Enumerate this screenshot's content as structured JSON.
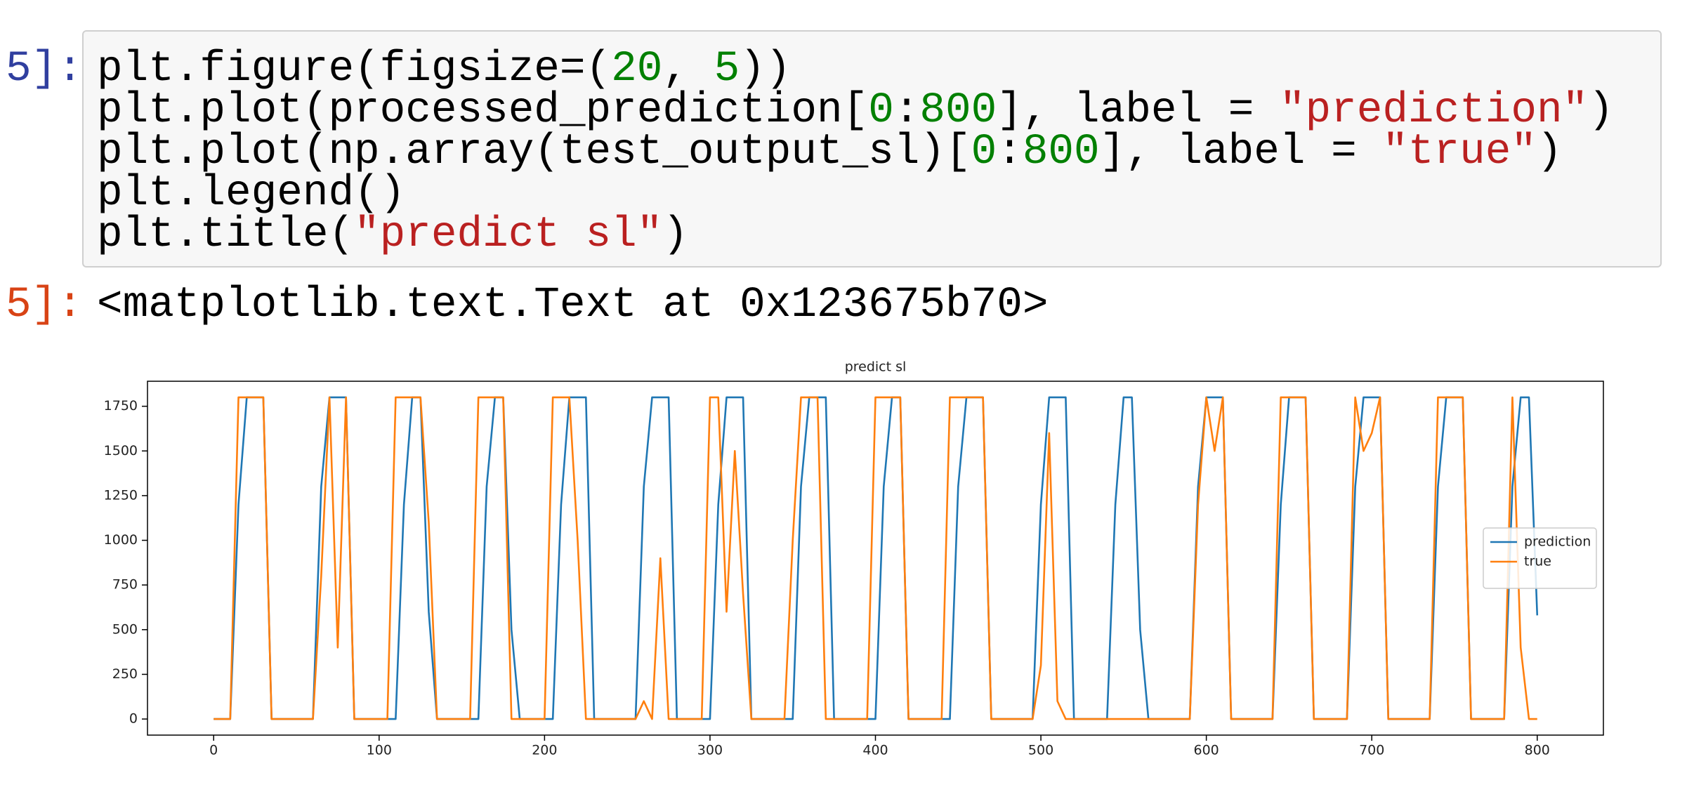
{
  "cell": {
    "prompt_in": "5]:",
    "lines": [
      [
        {
          "text": "plt.figure(figsize=(",
          "color": "#000000"
        },
        {
          "text": "20",
          "color": "#008000"
        },
        {
          "text": ", ",
          "color": "#000000"
        },
        {
          "text": "5",
          "color": "#008000"
        },
        {
          "text": "))",
          "color": "#000000"
        }
      ],
      [
        {
          "text": "plt.plot(processed_prediction[",
          "color": "#000000"
        },
        {
          "text": "0",
          "color": "#008000"
        },
        {
          "text": ":",
          "color": "#000000"
        },
        {
          "text": "800",
          "color": "#008000"
        },
        {
          "text": "], label = ",
          "color": "#000000"
        },
        {
          "text": "\"prediction\"",
          "color": "#ba2121"
        },
        {
          "text": ")",
          "color": "#000000"
        }
      ],
      [
        {
          "text": "plt.plot(np.array(test_output_sl)[",
          "color": "#000000"
        },
        {
          "text": "0",
          "color": "#008000"
        },
        {
          "text": ":",
          "color": "#000000"
        },
        {
          "text": "800",
          "color": "#008000"
        },
        {
          "text": "], label = ",
          "color": "#000000"
        },
        {
          "text": "\"true\"",
          "color": "#ba2121"
        },
        {
          "text": ")",
          "color": "#000000"
        }
      ],
      [
        {
          "text": "plt.legend()",
          "color": "#000000"
        }
      ],
      [
        {
          "text": "plt.title(",
          "color": "#000000"
        },
        {
          "text": "\"predict sl\"",
          "color": "#ba2121"
        },
        {
          "text": ")",
          "color": "#000000"
        }
      ]
    ],
    "prompt_out": "5]:",
    "output": "<matplotlib.text.Text at 0x123675b70>"
  },
  "chart_data": {
    "type": "line",
    "title": "predict sl",
    "x": [
      0,
      5,
      10,
      15,
      20,
      25,
      30,
      35,
      40,
      45,
      50,
      55,
      60,
      65,
      70,
      75,
      80,
      85,
      90,
      95,
      100,
      105,
      110,
      115,
      120,
      125,
      130,
      135,
      140,
      145,
      150,
      155,
      160,
      165,
      170,
      175,
      180,
      185,
      190,
      195,
      200,
      205,
      210,
      215,
      220,
      225,
      230,
      235,
      240,
      245,
      250,
      255,
      260,
      265,
      270,
      275,
      280,
      285,
      290,
      295,
      300,
      305,
      310,
      315,
      320,
      325,
      330,
      335,
      340,
      345,
      350,
      355,
      360,
      365,
      370,
      375,
      380,
      385,
      390,
      395,
      400,
      405,
      410,
      415,
      420,
      425,
      430,
      435,
      440,
      445,
      450,
      455,
      460,
      465,
      470,
      475,
      480,
      485,
      490,
      495,
      500,
      505,
      510,
      515,
      520,
      525,
      530,
      535,
      540,
      545,
      550,
      555,
      560,
      565,
      570,
      575,
      580,
      585,
      590,
      595,
      600,
      605,
      610,
      615,
      620,
      625,
      630,
      635,
      640,
      645,
      650,
      655,
      660,
      665,
      670,
      675,
      680,
      685,
      690,
      695,
      700,
      705,
      710,
      715,
      720,
      725,
      730,
      735,
      740,
      745,
      750,
      755,
      760,
      765,
      770,
      775,
      780,
      785,
      790,
      795,
      800
    ],
    "series": [
      {
        "name": "prediction",
        "color": "#1f77b4",
        "values": [
          0,
          0,
          0,
          1200,
          1800,
          1800,
          1800,
          0,
          0,
          0,
          0,
          0,
          0,
          1300,
          1800,
          1800,
          1800,
          0,
          0,
          0,
          0,
          0,
          0,
          1200,
          1800,
          1800,
          600,
          0,
          0,
          0,
          0,
          0,
          0,
          1300,
          1800,
          1800,
          500,
          0,
          0,
          0,
          0,
          0,
          1200,
          1800,
          1800,
          1800,
          0,
          0,
          0,
          0,
          0,
          0,
          1300,
          1800,
          1800,
          1800,
          0,
          0,
          0,
          0,
          0,
          1200,
          1800,
          1800,
          1800,
          0,
          0,
          0,
          0,
          0,
          0,
          1300,
          1800,
          1800,
          1800,
          0,
          0,
          0,
          0,
          0,
          0,
          1300,
          1800,
          1800,
          0,
          0,
          0,
          0,
          0,
          0,
          1300,
          1800,
          1800,
          1800,
          0,
          0,
          0,
          0,
          0,
          0,
          1200,
          1800,
          1800,
          1800,
          0,
          0,
          0,
          0,
          0,
          1200,
          1800,
          1800,
          500,
          0,
          0,
          0,
          0,
          0,
          0,
          1300,
          1800,
          1800,
          1800,
          0,
          0,
          0,
          0,
          0,
          0,
          1200,
          1800,
          1800,
          1800,
          0,
          0,
          0,
          0,
          0,
          1300,
          1800,
          1800,
          1800,
          0,
          0,
          0,
          0,
          0,
          0,
          1300,
          1800,
          1800,
          1800,
          0,
          0,
          0,
          0,
          0,
          1300,
          1800,
          1800,
          580
        ]
      },
      {
        "name": "true",
        "color": "#ff7f0e",
        "values": [
          0,
          0,
          0,
          1800,
          1800,
          1800,
          1800,
          0,
          0,
          0,
          0,
          0,
          0,
          800,
          1800,
          400,
          1800,
          0,
          0,
          0,
          0,
          0,
          1800,
          1800,
          1800,
          1800,
          1100,
          0,
          0,
          0,
          0,
          0,
          1800,
          1800,
          1800,
          1800,
          0,
          0,
          0,
          0,
          0,
          1800,
          1800,
          1800,
          1000,
          0,
          0,
          0,
          0,
          0,
          0,
          0,
          100,
          0,
          900,
          0,
          0,
          0,
          0,
          0,
          1800,
          1800,
          600,
          1500,
          700,
          0,
          0,
          0,
          0,
          0,
          1000,
          1800,
          1800,
          1800,
          0,
          0,
          0,
          0,
          0,
          0,
          1800,
          1800,
          1800,
          1800,
          0,
          0,
          0,
          0,
          0,
          1800,
          1800,
          1800,
          1800,
          1800,
          0,
          0,
          0,
          0,
          0,
          0,
          300,
          1600,
          100,
          0,
          0,
          0,
          0,
          0,
          0,
          0,
          0,
          0,
          0,
          0,
          0,
          0,
          0,
          0,
          0,
          1200,
          1800,
          1500,
          1800,
          0,
          0,
          0,
          0,
          0,
          0,
          1800,
          1800,
          1800,
          1800,
          0,
          0,
          0,
          0,
          0,
          1800,
          1500,
          1600,
          1800,
          0,
          0,
          0,
          0,
          0,
          0,
          1800,
          1800,
          1800,
          1800,
          0,
          0,
          0,
          0,
          0,
          1800,
          400,
          0,
          0
        ]
      }
    ],
    "xlim": [
      -40,
      840
    ],
    "ylim": [
      -90,
      1890
    ],
    "xticks": [
      0,
      100,
      200,
      300,
      400,
      500,
      600,
      700,
      800
    ],
    "yticks": [
      0,
      250,
      500,
      750,
      1000,
      1250,
      1500,
      1750
    ],
    "grid": false,
    "legend": "center right"
  }
}
